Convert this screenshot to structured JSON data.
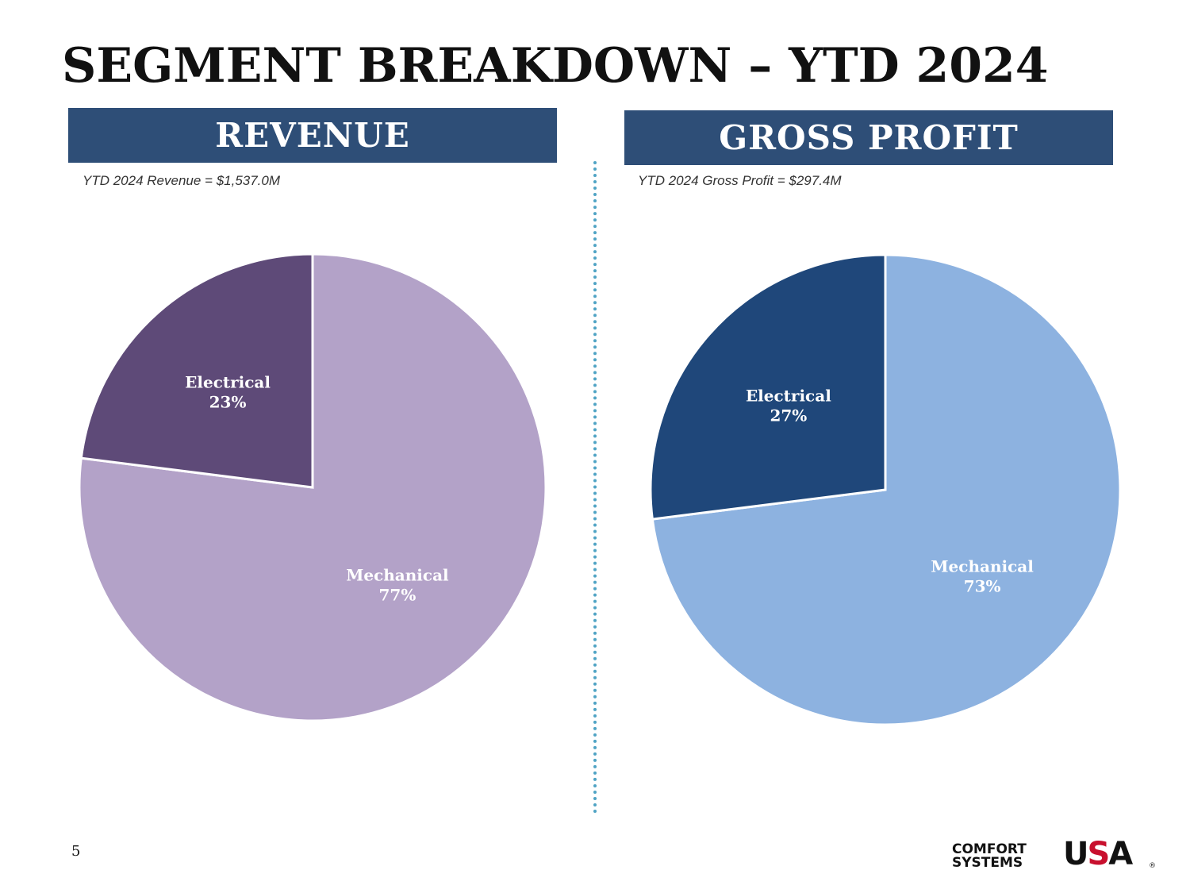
{
  "title": "SEGMENT BREAKDOWN – YTD 2024",
  "page_number": "5",
  "logo": {
    "line1": "COMFORT",
    "line2": "SYSTEMS",
    "usa_u": "U",
    "usa_s": "S",
    "usa_a": "A",
    "reg": "®"
  },
  "chart_data": [
    {
      "type": "pie",
      "title": "REVENUE",
      "subtitle": "YTD 2024 Revenue = $1,537.0M",
      "slices": [
        {
          "label": "Mechanical",
          "value": 77,
          "value_label": "77%",
          "color": "#b3a2c8"
        },
        {
          "label": "Electrical",
          "value": 23,
          "value_label": "23%",
          "color": "#5e4a78"
        }
      ]
    },
    {
      "type": "pie",
      "title": "GROSS PROFIT",
      "subtitle": "YTD 2024 Gross Profit = $297.4M",
      "slices": [
        {
          "label": "Mechanical",
          "value": 73,
          "value_label": "73%",
          "color": "#8db2e0"
        },
        {
          "label": "Electrical",
          "value": 27,
          "value_label": "27%",
          "color": "#1f477a"
        }
      ]
    }
  ]
}
